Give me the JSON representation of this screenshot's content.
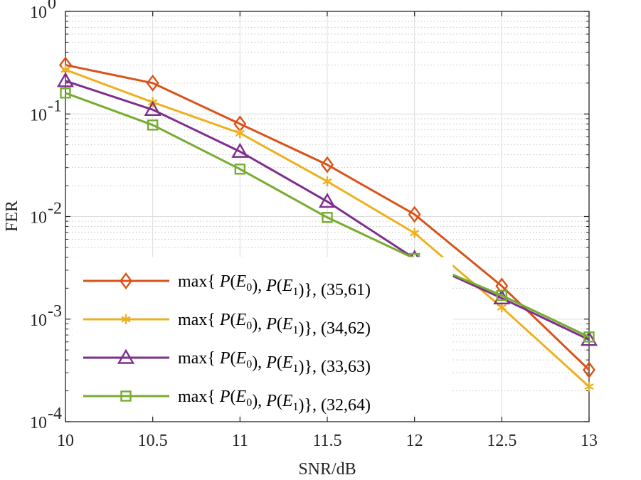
{
  "chart_data": {
    "type": "line",
    "title": "",
    "xlabel": "SNR/dB",
    "ylabel": "FER",
    "x": [
      10,
      10.5,
      11,
      11.5,
      12,
      12.5,
      13
    ],
    "xlim": [
      10,
      13
    ],
    "ylim": [
      0.0001,
      1
    ],
    "yscale": "log",
    "grid": true,
    "minor_grid": true,
    "legend_position": "lower-left",
    "x_ticks": [
      "10",
      "10.5",
      "11",
      "11.5",
      "12",
      "12.5",
      "13"
    ],
    "y_ticks": [
      {
        "base": "10",
        "exp": "0"
      },
      {
        "base": "10",
        "exp": "-1"
      },
      {
        "base": "10",
        "exp": "-2"
      },
      {
        "base": "10",
        "exp": "-3"
      },
      {
        "base": "10",
        "exp": "-4"
      }
    ],
    "series": [
      {
        "name": "max{ P(E0), P(E1)}, (35,61)",
        "color": "#D95319",
        "marker": "diamond",
        "values": [
          0.3,
          0.2,
          0.08,
          0.032,
          0.0105,
          0.0021,
          0.00032
        ]
      },
      {
        "name": "max{ P(E0), P(E1)}, (34,62)",
        "color": "#EDB120",
        "marker": "asterisk",
        "values": [
          0.27,
          0.13,
          0.065,
          0.022,
          0.0069,
          0.0013,
          0.00022
        ]
      },
      {
        "name": "max{ P(E0), P(E1)}, (33,63)",
        "color": "#7E2F8E",
        "marker": "triangle",
        "values": [
          0.21,
          0.11,
          0.043,
          0.014,
          0.0039,
          0.0016,
          0.00063
        ]
      },
      {
        "name": "max{ P(E0), P(E1)}, (32,64)",
        "color": "#77AC30",
        "marker": "square",
        "values": [
          0.16,
          0.078,
          0.029,
          0.0098,
          0.0039,
          0.0017,
          0.00067
        ]
      }
    ]
  }
}
